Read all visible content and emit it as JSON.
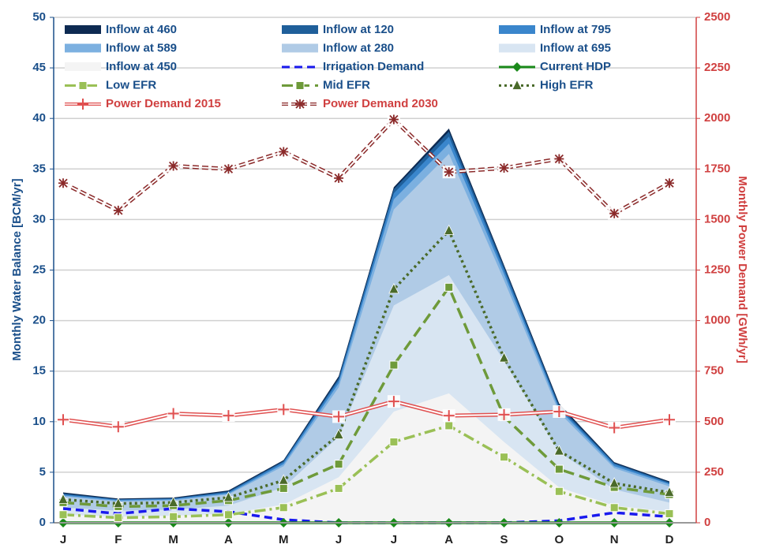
{
  "chart_data": {
    "type": "area",
    "y_label": "Monthly Water Balance [BCM/yr]",
    "y2_label": "Monthly Power Demand [GWh/yr]",
    "categories": [
      "J",
      "F",
      "M",
      "A",
      "M",
      "J",
      "J",
      "A",
      "S",
      "O",
      "N",
      "D"
    ],
    "ylim": [
      0,
      50
    ],
    "yticks": [
      0,
      5,
      10,
      15,
      20,
      25,
      30,
      35,
      40,
      45,
      50
    ],
    "y2lim": [
      0,
      2500
    ],
    "y2ticks": [
      0,
      250,
      500,
      750,
      1000,
      1250,
      1500,
      1750,
      2000,
      2250,
      2500
    ],
    "grid": true,
    "series": [
      {
        "name": "Inflow at 460",
        "type": "area",
        "color": "#0d2a52",
        "values": [
          3.0,
          2.4,
          2.5,
          3.2,
          6.2,
          14.5,
          33.2,
          39.0,
          25.5,
          11.8,
          6.0,
          4.1
        ]
      },
      {
        "name": "Inflow at 120",
        "type": "area",
        "color": "#1f5f9a",
        "values": [
          2.9,
          2.3,
          2.4,
          3.1,
          6.1,
          14.3,
          33.0,
          38.7,
          25.3,
          11.6,
          5.9,
          4.0
        ]
      },
      {
        "name": "Inflow at 795",
        "type": "area",
        "color": "#3a86cc",
        "values": [
          2.8,
          2.3,
          2.4,
          3.0,
          6.0,
          14.1,
          32.6,
          38.2,
          25.0,
          11.4,
          5.8,
          3.9
        ]
      },
      {
        "name": "Inflow at 589",
        "type": "area",
        "color": "#7cb0e0",
        "values": [
          2.7,
          2.2,
          2.3,
          2.9,
          5.8,
          13.8,
          32.0,
          37.5,
          24.6,
          11.2,
          5.6,
          3.8
        ]
      },
      {
        "name": "Inflow at 280",
        "type": "area",
        "color": "#b0cbe6",
        "values": [
          2.6,
          2.1,
          2.2,
          2.8,
          5.6,
          13.4,
          31.0,
          36.5,
          24.0,
          10.9,
          5.4,
          3.6
        ]
      },
      {
        "name": "Inflow at 695",
        "type": "area",
        "color": "#d8e5f2",
        "values": [
          1.5,
          1.2,
          1.3,
          1.7,
          3.5,
          8.5,
          21.5,
          24.5,
          16.0,
          7.0,
          3.3,
          2.0
        ]
      },
      {
        "name": "Inflow at 450",
        "type": "area",
        "color": "#f4f4f4",
        "values": [
          0.8,
          0.6,
          0.7,
          0.9,
          1.8,
          4.5,
          11.0,
          12.8,
          8.0,
          3.5,
          1.7,
          1.1
        ]
      },
      {
        "name": "Irrigation Demand",
        "type": "line",
        "color": "#1a1aee",
        "dash": "10,6",
        "marker": "none",
        "values": [
          1.4,
          0.9,
          1.4,
          1.1,
          0.3,
          0,
          0,
          0,
          0,
          0.2,
          1.0,
          0.6
        ]
      },
      {
        "name": "Current HDP",
        "type": "line",
        "color": "#1a8a1a",
        "dash": "none",
        "marker": "diamond",
        "values": [
          0,
          0,
          0,
          0,
          0,
          0,
          0,
          0,
          0,
          0,
          0,
          0
        ]
      },
      {
        "name": "Low EFR",
        "type": "line",
        "color": "#9ac056",
        "dash": "14,5,3,5",
        "marker": "square",
        "values": [
          0.8,
          0.5,
          0.6,
          0.8,
          1.5,
          3.4,
          8.0,
          9.6,
          6.5,
          3.1,
          1.5,
          0.9
        ]
      },
      {
        "name": "Mid EFR",
        "type": "line",
        "color": "#6e9a3a",
        "dash": "14,7",
        "marker": "square",
        "values": [
          2.0,
          1.6,
          1.7,
          2.2,
          3.4,
          5.8,
          15.6,
          23.3,
          10.5,
          5.3,
          3.5,
          2.8
        ]
      },
      {
        "name": "High EFR",
        "type": "line",
        "color": "#4a6a2a",
        "dash": "3,4",
        "marker": "triangle",
        "values": [
          2.3,
          1.9,
          2.0,
          2.5,
          4.2,
          8.7,
          23.1,
          28.9,
          16.3,
          7.1,
          3.9,
          3.0
        ]
      },
      {
        "name": "Power Demand 2015",
        "type": "line",
        "axis": "y2",
        "color": "#e05050",
        "dash": "none",
        "marker": "plus",
        "values": [
          510,
          475,
          540,
          530,
          560,
          525,
          600,
          530,
          535,
          550,
          470,
          510
        ]
      },
      {
        "name": "Power Demand 2030",
        "type": "line",
        "axis": "y2",
        "color": "#8b2a2a",
        "dash": "8,4",
        "marker": "asterisk",
        "values": [
          1680,
          1545,
          1765,
          1750,
          1835,
          1705,
          1995,
          1735,
          1755,
          1800,
          1530,
          1680
        ]
      }
    ]
  }
}
